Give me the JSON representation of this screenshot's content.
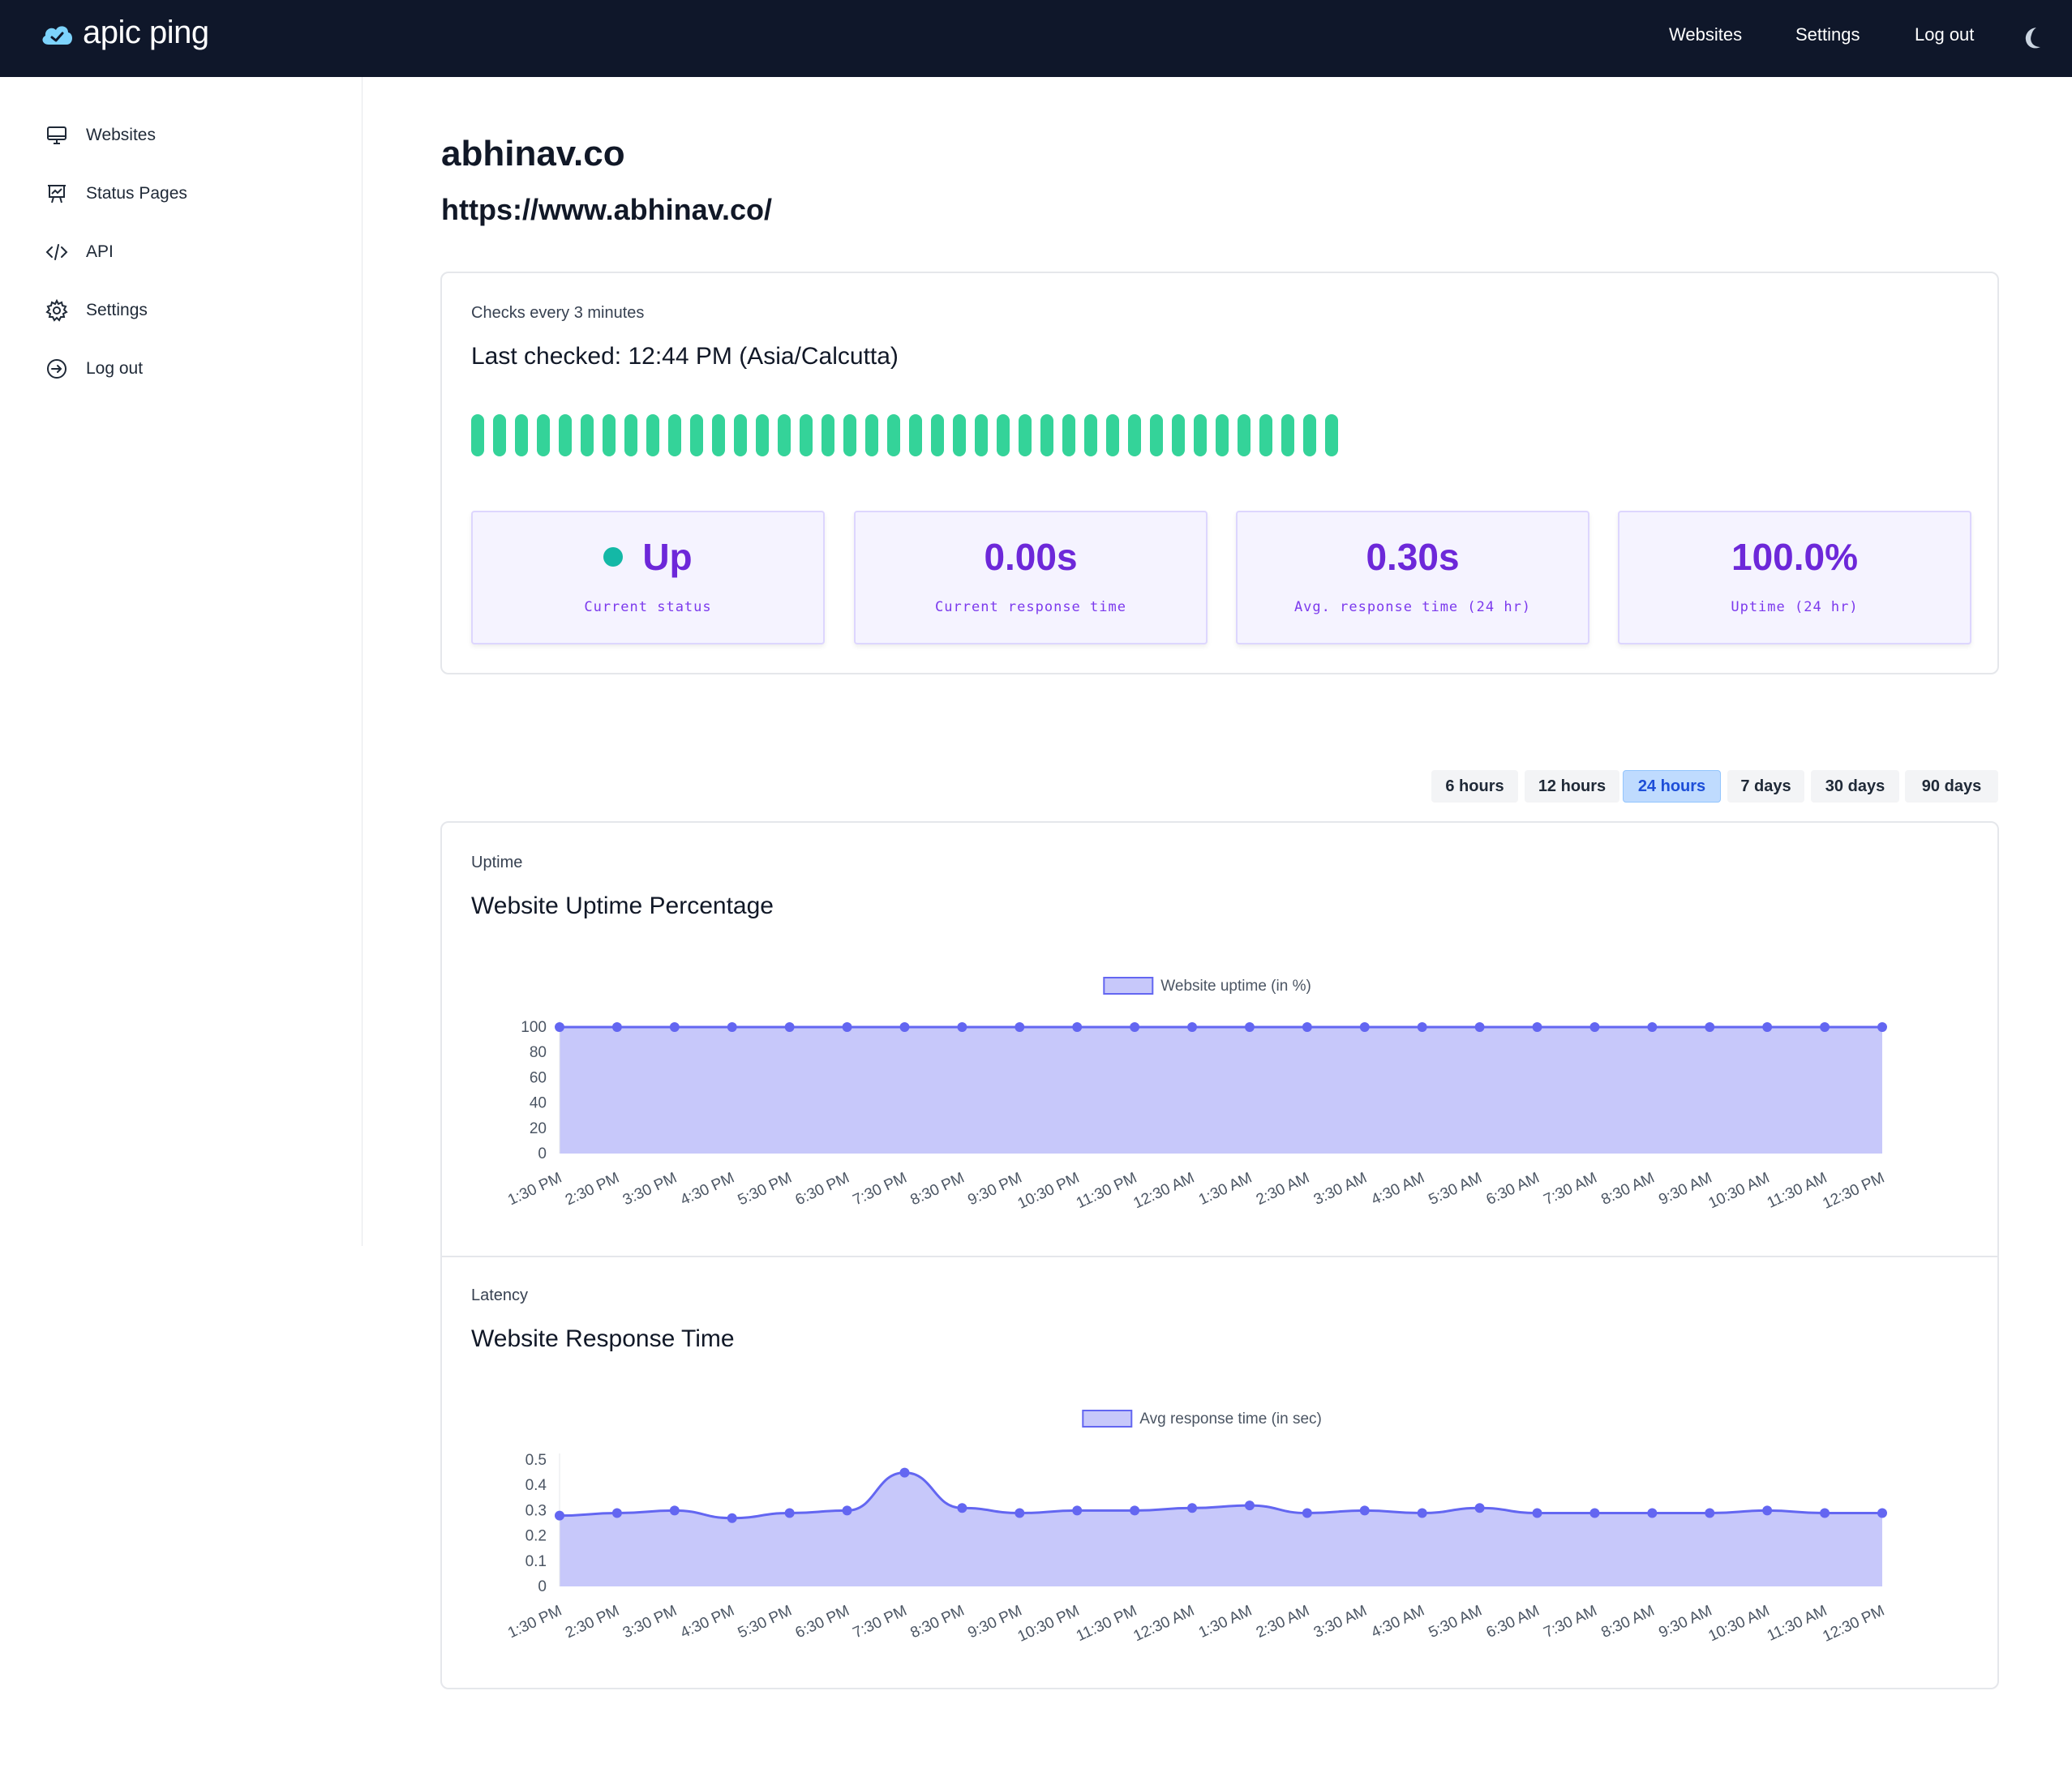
{
  "brand": {
    "name": "apic ping"
  },
  "topnav": {
    "websites": "Websites",
    "settings": "Settings",
    "logout": "Log out",
    "theme_icon": "moon-icon"
  },
  "sidebar": {
    "items": [
      {
        "label": "Websites",
        "icon": "monitor-icon"
      },
      {
        "label": "Status Pages",
        "icon": "presentation-chart-icon"
      },
      {
        "label": "API",
        "icon": "code-icon"
      },
      {
        "label": "Settings",
        "icon": "gear-icon"
      },
      {
        "label": "Log out",
        "icon": "logout-arrow-icon"
      }
    ]
  },
  "site": {
    "title": "abhinav.co",
    "url": "https://www.abhinav.co/"
  },
  "check": {
    "interval": "Checks every 3 minutes",
    "last_checked": "Last checked: 12:44 PM (Asia/Calcutta)",
    "heartbeat_count": 40,
    "heartbeat_color": "#34d399"
  },
  "stats": [
    {
      "value": "Up",
      "label": "Current status",
      "indicator": true
    },
    {
      "value": "0.00s",
      "label": "Current response time"
    },
    {
      "value": "0.30s",
      "label": "Avg. response time (24 hr)"
    },
    {
      "value": "100.0%",
      "label": "Uptime (24 hr)"
    }
  ],
  "ranges": {
    "options": [
      "6 hours",
      "12 hours",
      "24 hours",
      "7 days",
      "30 days",
      "90 days"
    ],
    "selected": "24 hours"
  },
  "uptime": {
    "eyebrow": "Uptime",
    "title": "Website Uptime Percentage"
  },
  "latency": {
    "eyebrow": "Latency",
    "title": "Website Response Time"
  },
  "colors": {
    "accent": "#6366f1",
    "fill": "#c7c8fa",
    "topbar": "#0f172a",
    "stat_text": "#6d28d9"
  },
  "chart_data": [
    {
      "type": "area",
      "x": [
        "1:30 PM",
        "2:30 PM",
        "3:30 PM",
        "4:30 PM",
        "5:30 PM",
        "6:30 PM",
        "7:30 PM",
        "8:30 PM",
        "9:30 PM",
        "10:30 PM",
        "11:30 PM",
        "12:30 AM",
        "1:30 AM",
        "2:30 AM",
        "3:30 AM",
        "4:30 AM",
        "5:30 AM",
        "6:30 AM",
        "7:30 AM",
        "8:30 AM",
        "9:30 AM",
        "10:30 AM",
        "11:30 AM",
        "12:30 PM"
      ],
      "series": [
        {
          "name": "Website uptime (in %)",
          "values": [
            100,
            100,
            100,
            100,
            100,
            100,
            100,
            100,
            100,
            100,
            100,
            100,
            100,
            100,
            100,
            100,
            100,
            100,
            100,
            100,
            100,
            100,
            100,
            100
          ]
        }
      ],
      "yticks": [
        "0",
        "20",
        "40",
        "60",
        "80",
        "100"
      ],
      "ylim": [
        0,
        100
      ],
      "legend": "top-center",
      "grid": false
    },
    {
      "type": "area",
      "x": [
        "1:30 PM",
        "2:30 PM",
        "3:30 PM",
        "4:30 PM",
        "5:30 PM",
        "6:30 PM",
        "7:30 PM",
        "8:30 PM",
        "9:30 PM",
        "10:30 PM",
        "11:30 PM",
        "12:30 AM",
        "1:30 AM",
        "2:30 AM",
        "3:30 AM",
        "4:30 AM",
        "5:30 AM",
        "6:30 AM",
        "7:30 AM",
        "8:30 AM",
        "9:30 AM",
        "10:30 AM",
        "11:30 AM",
        "12:30 PM"
      ],
      "series": [
        {
          "name": "Avg response time (in sec)",
          "values": [
            0.28,
            0.29,
            0.3,
            0.27,
            0.29,
            0.3,
            0.45,
            0.31,
            0.29,
            0.3,
            0.3,
            0.31,
            0.32,
            0.29,
            0.3,
            0.29,
            0.31,
            0.29,
            0.29,
            0.29,
            0.29,
            0.3,
            0.29,
            0.29
          ]
        }
      ],
      "yticks": [
        "0",
        "0.1",
        "0.2",
        "0.3",
        "0.4",
        "0.5"
      ],
      "ylim": [
        0,
        0.5
      ],
      "legend": "top-center",
      "grid": false
    }
  ]
}
